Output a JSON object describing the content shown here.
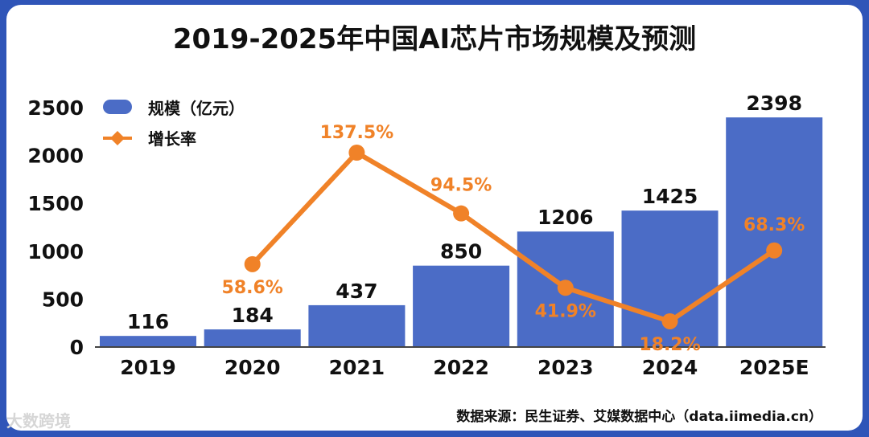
{
  "chart_data": {
    "type": "bar",
    "title": "2019-2025年中国AI芯片市场规模及预测",
    "categories": [
      "2019",
      "2020",
      "2021",
      "2022",
      "2023",
      "2024",
      "2025E"
    ],
    "series": [
      {
        "name": "规模（亿元）",
        "kind": "bar",
        "color": "#4b6cc6",
        "values": [
          116,
          184,
          437,
          850,
          1206,
          1425,
          2398
        ],
        "labels": [
          "116",
          "184",
          "437",
          "850",
          "1206",
          "1425",
          "2398"
        ]
      },
      {
        "name": "增长率",
        "kind": "line",
        "color": "#f08228",
        "values": [
          null,
          58.6,
          137.5,
          94.5,
          41.9,
          18.2,
          68.3
        ],
        "labels": [
          "",
          "58.6%",
          "137.5%",
          "94.5%",
          "41.9%",
          "18.2%",
          "68.3%"
        ]
      }
    ],
    "yticks": [
      "0",
      "500",
      "1000",
      "1500",
      "2000",
      "2500"
    ],
    "ylim": [
      0,
      2500
    ],
    "y2lim": [
      0,
      137.5
    ],
    "legend": "top-left"
  },
  "source_note": "数据来源：民生证券、艾媒数据中心（data.iimedia.cn）",
  "watermark": "大数跨境"
}
